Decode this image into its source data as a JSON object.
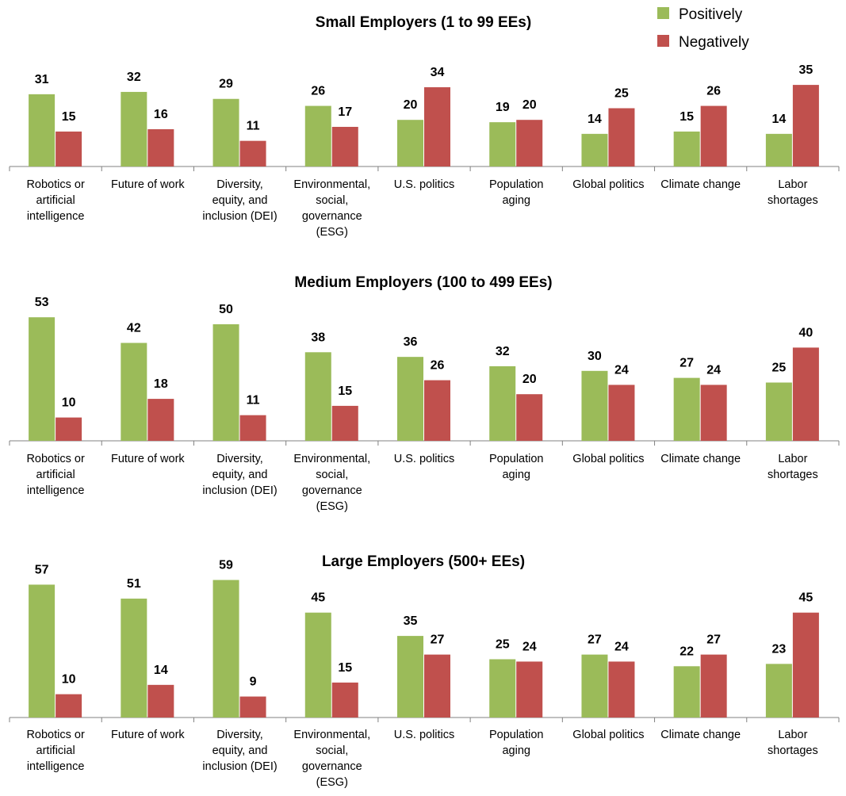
{
  "legend": [
    {
      "name": "Positively",
      "color": "#9BBB59"
    },
    {
      "name": "Negatively",
      "color": "#C0504D"
    }
  ],
  "chart_data": [
    {
      "type": "bar",
      "title": "Small Employers (1 to 99 EEs)",
      "categories": [
        "Robotics or artificial intelligence",
        "Future of work",
        "Diversity, equity, and inclusion (DEI)",
        "Environmental, social, governance (ESG)",
        "U.S. politics",
        "Population aging",
        "Global politics",
        "Climate change",
        "Labor shortages"
      ],
      "series": [
        {
          "name": "Positively",
          "color": "#9BBB59",
          "values": [
            31,
            32,
            29,
            26,
            20,
            19,
            14,
            15,
            14
          ]
        },
        {
          "name": "Negatively",
          "color": "#C0504D",
          "values": [
            15,
            16,
            11,
            17,
            34,
            20,
            25,
            26,
            35
          ]
        }
      ],
      "legend_position": "top-right",
      "grid": false
    },
    {
      "type": "bar",
      "title": "Medium Employers (100 to 499 EEs)",
      "categories": [
        "Robotics or artificial intelligence",
        "Future of work",
        "Diversity, equity, and inclusion (DEI)",
        "Environmental, social, governance (ESG)",
        "U.S. politics",
        "Population aging",
        "Global politics",
        "Climate change",
        "Labor shortages"
      ],
      "series": [
        {
          "name": "Positively",
          "color": "#9BBB59",
          "values": [
            53,
            42,
            50,
            38,
            36,
            32,
            30,
            27,
            25
          ]
        },
        {
          "name": "Negatively",
          "color": "#C0504D",
          "values": [
            10,
            18,
            11,
            15,
            26,
            20,
            24,
            24,
            40
          ]
        }
      ],
      "grid": false
    },
    {
      "type": "bar",
      "title": "Large Employers (500+ EEs)",
      "categories": [
        "Robotics or artificial intelligence",
        "Future of work",
        "Diversity, equity, and inclusion (DEI)",
        "Environmental, social, governance (ESG)",
        "U.S. politics",
        "Population aging",
        "Global politics",
        "Climate change",
        "Labor shortages"
      ],
      "series": [
        {
          "name": "Positively",
          "color": "#9BBB59",
          "values": [
            57,
            51,
            59,
            45,
            35,
            25,
            27,
            22,
            23
          ]
        },
        {
          "name": "Negatively",
          "color": "#C0504D",
          "values": [
            10,
            14,
            9,
            15,
            27,
            24,
            24,
            27,
            45
          ]
        }
      ],
      "grid": false
    }
  ]
}
